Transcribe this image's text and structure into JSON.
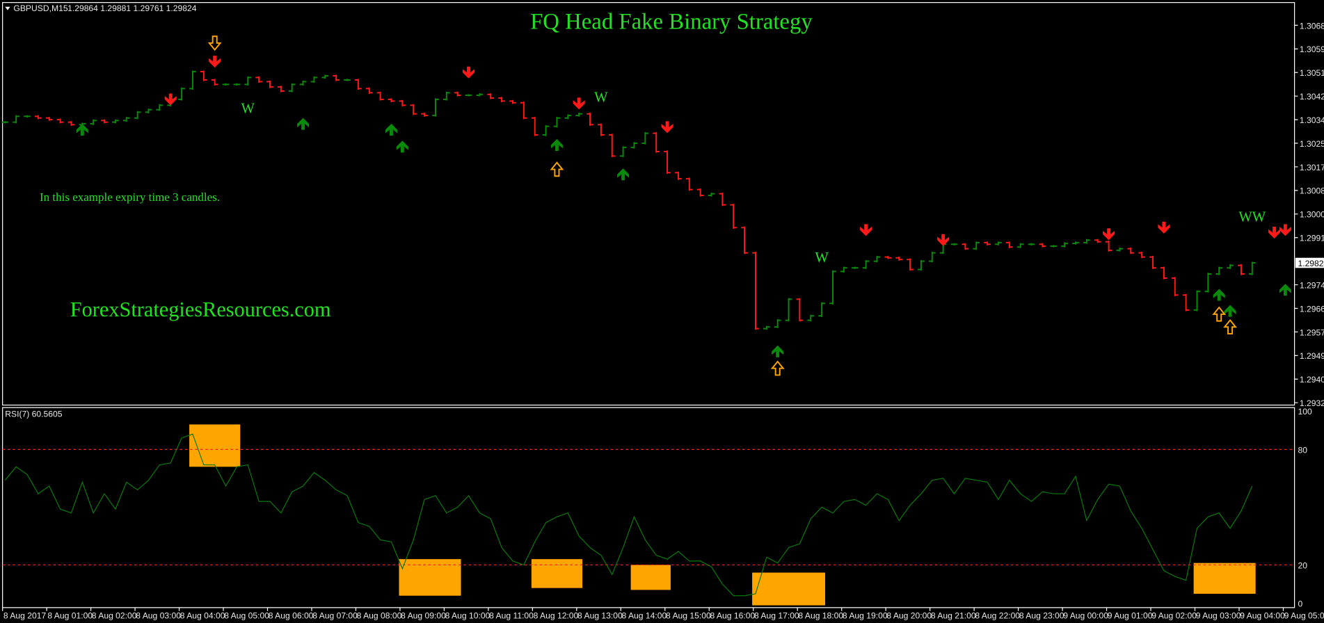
{
  "header": {
    "symbol": "GBPUSD,M15",
    "ohlc": "1.29864 1.29881 1.29761 1.29824"
  },
  "title": "FQ Head Fake Binary Strategy",
  "note": "In this example expiry time 3 candles.",
  "watermark": "ForexStrategiesResources.com",
  "colors": {
    "up": "#0a8a0a",
    "down": "#ff1a1a",
    "signal_outline": "#ffa500",
    "text": "#22e022",
    "rsi": "#0a7a0a",
    "level": "#ff2020",
    "highlight": "#ffa500"
  },
  "chart_data": [
    {
      "type": "ohlc",
      "ylabel_ticks": [
        "1.30680",
        "1.30595",
        "1.30510",
        "1.30425",
        "1.30340",
        "1.30255",
        "1.30170",
        "1.30085",
        "1.30000",
        "1.29915",
        "1.29745",
        "1.29660",
        "1.29575",
        "1.29490",
        "1.29405",
        "1.29320"
      ],
      "current_price": "1.29824",
      "ylim": [
        1.293,
        1.3076
      ],
      "closes": [
        1.30331,
        1.30352,
        1.30352,
        1.30346,
        1.3034,
        1.30331,
        1.30322,
        1.30325,
        1.30337,
        1.30331,
        1.30337,
        1.30346,
        1.30367,
        1.30376,
        1.30392,
        1.30413,
        1.30452,
        1.30513,
        1.30483,
        1.30467,
        1.30467,
        1.30467,
        1.30492,
        1.30477,
        1.30458,
        1.30443,
        1.30467,
        1.30477,
        1.30492,
        1.30498,
        1.30483,
        1.30483,
        1.30452,
        1.30437,
        1.30413,
        1.30407,
        1.30392,
        1.30361,
        1.30355,
        1.30413,
        1.30437,
        1.30428,
        1.30428,
        1.30431,
        1.30418,
        1.30407,
        1.30401,
        1.30346,
        1.30285,
        1.30316,
        1.30346,
        1.30355,
        1.30361,
        1.30322,
        1.30285,
        1.30209,
        1.3024,
        1.30255,
        1.30291,
        1.30225,
        1.30149,
        1.30127,
        1.30088,
        1.30067,
        1.30073,
        1.30033,
        1.29951,
        1.2986,
        1.29587,
        1.29593,
        1.29617,
        1.29693,
        1.29617,
        1.29633,
        1.29678,
        1.29793,
        1.29806,
        1.29806,
        1.2983,
        1.29845,
        1.29842,
        1.29836,
        1.298,
        1.2983,
        1.2986,
        1.29891,
        1.29891,
        1.29875,
        1.29897,
        1.29891,
        1.29897,
        1.29881,
        1.29891,
        1.29891,
        1.29884,
        1.29884,
        1.29894,
        1.29897,
        1.29906,
        1.299,
        1.29869,
        1.29875,
        1.2986,
        1.29845,
        1.29806,
        1.29769,
        1.29708,
        1.29654,
        1.29721,
        1.29784,
        1.29806,
        1.29815,
        1.29784,
        1.29824
      ],
      "signals": [
        {
          "kind": "sell",
          "bar": 15,
          "price": 1.30407
        },
        {
          "kind": "sell",
          "bar": 19,
          "price": 1.30543
        },
        {
          "kind": "sell",
          "bar": 42,
          "price": 1.30504
        },
        {
          "kind": "sell",
          "bar": 52,
          "price": 1.30392
        },
        {
          "kind": "sell",
          "bar": 60,
          "price": 1.30307
        },
        {
          "kind": "sell",
          "bar": 78,
          "price": 1.29936
        },
        {
          "kind": "sell",
          "bar": 85,
          "price": 1.299
        },
        {
          "kind": "sell",
          "bar": 100,
          "price": 1.29921
        },
        {
          "kind": "sell",
          "bar": 105,
          "price": 1.29945
        },
        {
          "kind": "sell",
          "bar": 115,
          "price": 1.29927
        },
        {
          "kind": "sell",
          "bar": 116,
          "price": 1.29936
        },
        {
          "kind": "buy",
          "bar": 7,
          "price": 1.3031
        },
        {
          "kind": "buy",
          "bar": 27,
          "price": 1.30331
        },
        {
          "kind": "buy",
          "bar": 35,
          "price": 1.3031
        },
        {
          "kind": "buy",
          "bar": 36,
          "price": 1.30249
        },
        {
          "kind": "buy",
          "bar": 50,
          "price": 1.30255
        },
        {
          "kind": "buy",
          "bar": 56,
          "price": 1.30149
        },
        {
          "kind": "buy",
          "bar": 70,
          "price": 1.29511
        },
        {
          "kind": "buy",
          "bar": 110,
          "price": 1.29715
        },
        {
          "kind": "buy",
          "bar": 111,
          "price": 1.29657
        },
        {
          "kind": "buy",
          "bar": 116,
          "price": 1.29733
        },
        {
          "kind": "fake-up",
          "bar": 50,
          "price": 1.30164
        },
        {
          "kind": "fake-up",
          "bar": 70,
          "price": 1.29447
        },
        {
          "kind": "fake-up",
          "bar": 110,
          "price": 1.29642
        },
        {
          "kind": "fake-up",
          "bar": 111,
          "price": 1.29596
        },
        {
          "kind": "fake-down",
          "bar": 19,
          "price": 1.30613
        }
      ],
      "labels": [
        {
          "text": "W",
          "bar": 22,
          "price": 1.30382
        },
        {
          "text": "W",
          "bar": 54,
          "price": 1.30422
        },
        {
          "text": "W",
          "bar": 74,
          "price": 1.29845
        },
        {
          "text": "WW",
          "bar": 113,
          "price": 1.29991
        }
      ]
    },
    {
      "type": "line",
      "title": "RSI(7) 60.5605",
      "ylim": [
        0,
        100
      ],
      "ticks": [
        "100",
        "80",
        "20",
        "0"
      ],
      "levels": [
        80,
        20
      ],
      "values": [
        64,
        71,
        67,
        57,
        61,
        49,
        47,
        63,
        47,
        57,
        49,
        63,
        59,
        64,
        72,
        73,
        86,
        88,
        72,
        72,
        61,
        71,
        72,
        53,
        53,
        47,
        58,
        61,
        68,
        64,
        59,
        56,
        42,
        40,
        33,
        32,
        18,
        33,
        54,
        56,
        47,
        50,
        56,
        47,
        44,
        29,
        22,
        20,
        32,
        42,
        45,
        47,
        35,
        29,
        25,
        15,
        29,
        45,
        33,
        25,
        23,
        27,
        22,
        22,
        19,
        10,
        4,
        4,
        5,
        24,
        21,
        29,
        31,
        44,
        50,
        47,
        53,
        54,
        51,
        57,
        54,
        43,
        51,
        57,
        64,
        65,
        57,
        65,
        64,
        63,
        54,
        64,
        57,
        53,
        58,
        57,
        57,
        66,
        43,
        54,
        62,
        61,
        48,
        39,
        28,
        17,
        14,
        12,
        39,
        45,
        47,
        39,
        48,
        61
      ],
      "highlights": [
        {
          "from_bar": 17,
          "to_bar": 21,
          "rsi": [
            71,
            93
          ]
        },
        {
          "from_bar": 36,
          "to_bar": 41,
          "rsi": [
            4,
            23
          ]
        },
        {
          "from_bar": 48,
          "to_bar": 52,
          "rsi": [
            8,
            23
          ]
        },
        {
          "from_bar": 57,
          "to_bar": 60,
          "rsi": [
            7,
            20
          ]
        },
        {
          "from_bar": 68,
          "to_bar": 74,
          "rsi": [
            -1,
            16
          ]
        },
        {
          "from_bar": 108,
          "to_bar": 113,
          "rsi": [
            5,
            21
          ]
        }
      ]
    }
  ],
  "time_axis": [
    "8 Aug 2017",
    "8 Aug 01:00",
    "8 Aug 02:00",
    "8 Aug 03:00",
    "8 Aug 04:00",
    "8 Aug 05:00",
    "8 Aug 06:00",
    "8 Aug 07:00",
    "8 Aug 08:00",
    "8 Aug 09:00",
    "8 Aug 10:00",
    "8 Aug 11:00",
    "8 Aug 12:00",
    "8 Aug 13:00",
    "8 Aug 14:00",
    "8 Aug 15:00",
    "8 Aug 16:00",
    "8 Aug 17:00",
    "8 Aug 18:00",
    "8 Aug 19:00",
    "8 Aug 20:00",
    "8 Aug 21:00",
    "8 Aug 22:00",
    "8 Aug 23:00",
    "9 Aug 00:00",
    "9 Aug 01:00",
    "9 Aug 02:00",
    "9 Aug 03:00",
    "9 Aug 04:00",
    "9 Aug 05:00"
  ]
}
